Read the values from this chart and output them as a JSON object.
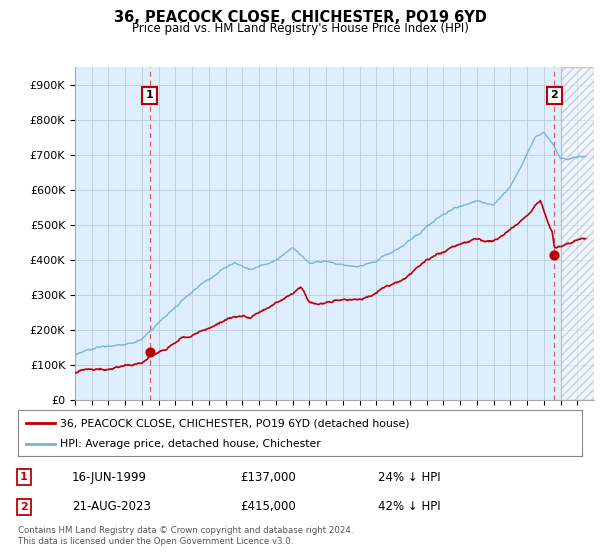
{
  "title": "36, PEACOCK CLOSE, CHICHESTER, PO19 6YD",
  "subtitle": "Price paid vs. HM Land Registry's House Price Index (HPI)",
  "xlim": [
    1995,
    2026
  ],
  "ylim": [
    0,
    950000
  ],
  "yticks": [
    0,
    100000,
    200000,
    300000,
    400000,
    500000,
    600000,
    700000,
    800000,
    900000
  ],
  "ytick_labels": [
    "£0",
    "£100K",
    "£200K",
    "£300K",
    "£400K",
    "£500K",
    "£600K",
    "£700K",
    "£800K",
    "£900K"
  ],
  "hpi_color": "#7ab3e0",
  "price_color": "#c00000",
  "sale1_year": 1999.46,
  "sale1_price": 137000,
  "sale1_price_label": "£137,000",
  "sale1_date_label": "16-JUN-1999",
  "sale1_hpi_note": "24% ↓ HPI",
  "sale2_year": 2023.63,
  "sale2_price": 415000,
  "sale2_price_label": "£415,000",
  "sale2_date_label": "21-AUG-2023",
  "sale2_hpi_note": "42% ↓ HPI",
  "vline_color": "#e06060",
  "annotation_box_color": "#c00000",
  "legend_label1": "36, PEACOCK CLOSE, CHICHESTER, PO19 6YD (detached house)",
  "legend_label2": "HPI: Average price, detached house, Chichester",
  "footer": "Contains HM Land Registry data © Crown copyright and database right 2024.\nThis data is licensed under the Open Government Licence v3.0.",
  "bg_color": "#ffffff",
  "plot_bg_color": "#ddeeff",
  "grid_color": "#bbccdd",
  "hatch_area_start": 2024.0,
  "hatch_color": "#cccccc"
}
